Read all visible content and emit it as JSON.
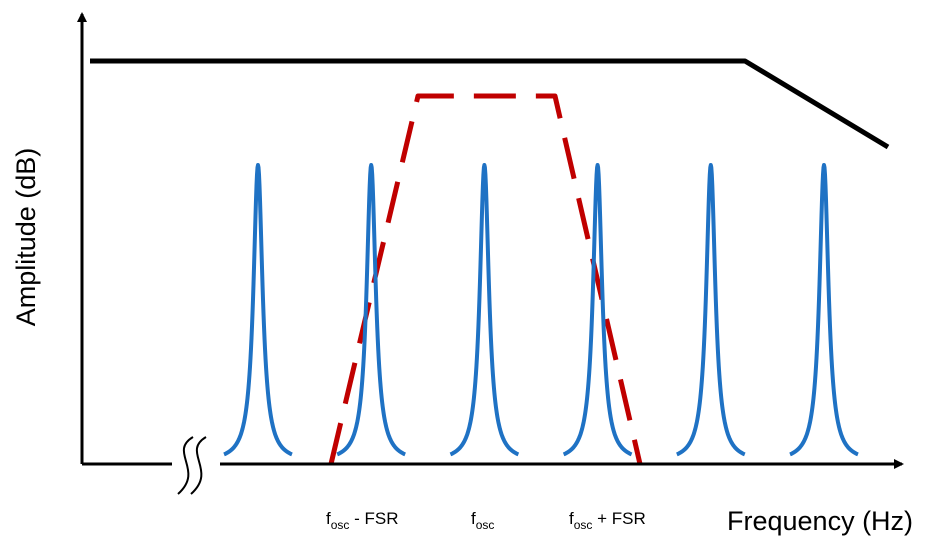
{
  "axes": {
    "x_label": "Frequency (Hz)",
    "y_label": "Amplitude (dB)"
  },
  "markers": [
    {
      "base": "f",
      "sub": "osc",
      "suffix": " - FSR"
    },
    {
      "base": "f",
      "sub": "osc",
      "suffix": ""
    },
    {
      "base": "f",
      "sub": "osc",
      "suffix": " + FSR"
    }
  ],
  "legend": [],
  "colors": {
    "axis": "#000000",
    "comb_peaks": "#1f72c4",
    "filter_passband": "#c00000",
    "gain_envelope": "#000000"
  },
  "comb": {
    "peak_count": 6,
    "peak_shape": "lorentzian"
  }
}
